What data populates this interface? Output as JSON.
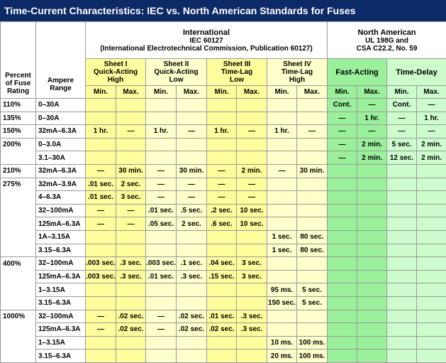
{
  "header": {
    "title": "Time-Current Characteristics: IEC vs. North American Standards for Fuses"
  },
  "columns": {
    "percent_label": [
      "Percent",
      "of Fuse",
      "Rating"
    ],
    "range_label": [
      "Ampere",
      "Range"
    ],
    "iec": {
      "title": "International",
      "lines": [
        "IEC 60127",
        "(International Electrotechnical Commission, Publication 60127)"
      ]
    },
    "na": {
      "title": "North American",
      "lines": [
        "UL 198G and",
        "CSA C22.2, No. 59"
      ]
    },
    "sheets": [
      {
        "lines": [
          "Sheet I",
          "Quick-Acting",
          "High"
        ]
      },
      {
        "lines": [
          "Sheet II",
          "Quick-Acting",
          "Low"
        ]
      },
      {
        "lines": [
          "Sheet III",
          "Time-Lag",
          "Low"
        ]
      },
      {
        "lines": [
          "Sheet IV",
          "Time-Lag",
          "High"
        ]
      }
    ],
    "na_types": [
      "Fast-Acting",
      "Time-Delay"
    ],
    "subheaders": [
      "Min.",
      "Max.",
      "Min.",
      "Max.",
      "Min.",
      "Max.",
      "Min.",
      "Max.",
      "Min.",
      "Max.",
      "Min.",
      "Max."
    ]
  },
  "table": {
    "rows": [
      {
        "percent": "110%",
        "range": "0–30A",
        "cells": [
          null,
          null,
          null,
          null,
          null,
          null,
          null,
          null,
          "Cont.",
          "—",
          "Cont.",
          "—"
        ]
      },
      {
        "percent": "135%",
        "range": "0–30A",
        "cells": [
          null,
          null,
          null,
          null,
          null,
          null,
          null,
          null,
          "—",
          "1 hr.",
          "—",
          "1 hr."
        ]
      },
      {
        "percent": "150%",
        "range": "32mA–6.3A",
        "cells": [
          "1 hr.",
          "—",
          "1 hr.",
          "—",
          "1 hr.",
          "—",
          "1 hr.",
          "—",
          "—",
          "—",
          "—",
          "—"
        ]
      },
      {
        "percent": "200%",
        "range": "0–3.0A",
        "cells": [
          null,
          null,
          null,
          null,
          null,
          null,
          null,
          null,
          "—",
          "2 min.",
          "5 sec.",
          "2 min."
        ]
      },
      {
        "percent": null,
        "range": "3.1–30A",
        "cells": [
          null,
          null,
          null,
          null,
          null,
          null,
          null,
          null,
          "—",
          "2 min.",
          "12 sec.",
          "2 min."
        ]
      },
      {
        "percent": "210%",
        "range": "32mA–6.3A",
        "cells": [
          "—",
          "30 min.",
          "—",
          "30 min.",
          "—",
          "2 min.",
          "—",
          "30 min.",
          null,
          null,
          null,
          null
        ]
      },
      {
        "percent": "275%",
        "range": "32mA–3.9A",
        "cells": [
          ".01 sec.",
          "2 sec.",
          "—",
          "—",
          "—",
          "—",
          null,
          null,
          null,
          null,
          null,
          null
        ]
      },
      {
        "percent": null,
        "range": "4–6.3A",
        "cells": [
          ".01 sec.",
          "3 sec.",
          "—",
          "—",
          "—",
          "—",
          null,
          null,
          null,
          null,
          null,
          null
        ]
      },
      {
        "percent": null,
        "range": "32–100mA",
        "cells": [
          "—",
          "—",
          ".01 sec.",
          ".5 sec.",
          ".2 sec.",
          "10 sec.",
          null,
          null,
          null,
          null,
          null,
          null
        ]
      },
      {
        "percent": null,
        "range": "125mA–6.3A",
        "cells": [
          "—",
          "—",
          ".05 sec.",
          "2 sec.",
          ".6 sec.",
          "10 sec.",
          null,
          null,
          null,
          null,
          null,
          null
        ]
      },
      {
        "percent": null,
        "range": "1A–3.15A",
        "cells": [
          null,
          null,
          null,
          null,
          null,
          null,
          "1 sec.",
          "80 sec.",
          null,
          null,
          null,
          null
        ]
      },
      {
        "percent": null,
        "range": "3.15–6.3A",
        "cells": [
          null,
          null,
          null,
          null,
          null,
          null,
          "1 sec.",
          "80 sec.",
          null,
          null,
          null,
          null
        ]
      },
      {
        "percent": "400%",
        "range": "32–100mA",
        "cells": [
          ".003 sec.",
          ".3 sec.",
          ".003 sec.",
          ".1 sec.",
          ".04 sec.",
          "3 sec.",
          null,
          null,
          null,
          null,
          null,
          null
        ]
      },
      {
        "percent": null,
        "range": "125mA–6.3A",
        "cells": [
          ".003 sec.",
          ".3 sec.",
          ".01 sec.",
          ".3 sec.",
          ".15 sec.",
          "3 sec.",
          null,
          null,
          null,
          null,
          null,
          null
        ]
      },
      {
        "percent": null,
        "range": "1–3.15A",
        "cells": [
          null,
          null,
          null,
          null,
          null,
          null,
          "95 ms.",
          "5 sec.",
          null,
          null,
          null,
          null
        ]
      },
      {
        "percent": null,
        "range": "3.15–6.3A",
        "cells": [
          null,
          null,
          null,
          null,
          null,
          null,
          "150 sec.",
          "5 sec.",
          null,
          null,
          null,
          null
        ]
      },
      {
        "percent": "1000%",
        "range": "32–100mA",
        "cells": [
          "—",
          ".02 sec.",
          "—",
          ".02 sec.",
          ".01 sec.",
          ".3 sec.",
          null,
          null,
          null,
          null,
          null,
          null
        ]
      },
      {
        "percent": null,
        "range": "125mA–6.3A",
        "cells": [
          "—",
          ".02 sec.",
          "—",
          ".02 sec.",
          ".02 sec.",
          ".3 sec.",
          null,
          null,
          null,
          null,
          null,
          null
        ]
      },
      {
        "percent": null,
        "range": "1–3.15A",
        "cells": [
          null,
          null,
          null,
          null,
          null,
          null,
          "10 ms.",
          "100 ms.",
          null,
          null,
          null,
          null
        ]
      },
      {
        "percent": null,
        "range": "3.15–6.3A",
        "cells": [
          null,
          null,
          null,
          null,
          null,
          null,
          "20 ms.",
          "100 ms.",
          null,
          null,
          null,
          null
        ]
      }
    ]
  }
}
